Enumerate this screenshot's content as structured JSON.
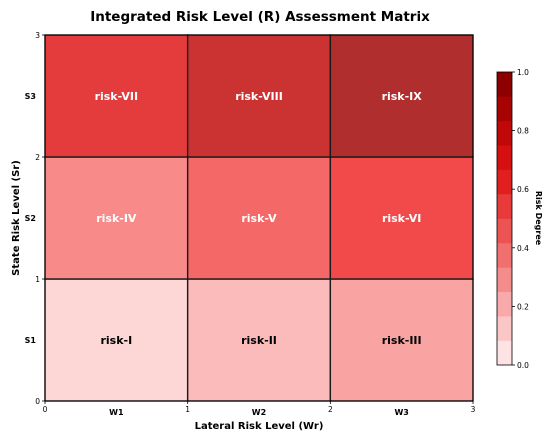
{
  "chart_data": {
    "type": "heatmap",
    "title": "Integrated Risk Level (R) Assessment Matrix",
    "xlabel": "Lateral Risk Level (Wr)",
    "ylabel": "State Risk Level (Sr)",
    "x_categories": [
      "W1",
      "W2",
      "W3"
    ],
    "y_categories": [
      "S1",
      "S2",
      "S3"
    ],
    "x_ticks": [
      "0",
      "1",
      "2",
      "3"
    ],
    "y_ticks": [
      "0",
      "1",
      "2",
      "3"
    ],
    "xlim": [
      0,
      3
    ],
    "ylim": [
      0,
      3
    ],
    "cells": [
      {
        "x": 0,
        "y": 0,
        "label": "risk-I",
        "value": 0.1,
        "color": "#fdd6d6",
        "text_color": "#000000"
      },
      {
        "x": 1,
        "y": 0,
        "label": "risk-II",
        "value": 0.2,
        "color": "#fbbbbb",
        "text_color": "#000000"
      },
      {
        "x": 2,
        "y": 0,
        "label": "risk-III",
        "value": 0.25,
        "color": "#f9a3a3",
        "text_color": "#000000"
      },
      {
        "x": 0,
        "y": 1,
        "label": "risk-IV",
        "value": 0.35,
        "color": "#f88a8a",
        "text_color": "#ffffff"
      },
      {
        "x": 1,
        "y": 1,
        "label": "risk-V",
        "value": 0.45,
        "color": "#f46868",
        "text_color": "#ffffff"
      },
      {
        "x": 2,
        "y": 1,
        "label": "risk-VI",
        "value": 0.55,
        "color": "#f24a4a",
        "text_color": "#ffffff"
      },
      {
        "x": 0,
        "y": 2,
        "label": "risk-VII",
        "value": 0.65,
        "color": "#e43c3c",
        "text_color": "#ffffff"
      },
      {
        "x": 1,
        "y": 2,
        "label": "risk-VIII",
        "value": 0.75,
        "color": "#cb3333",
        "text_color": "#ffffff"
      },
      {
        "x": 2,
        "y": 2,
        "label": "risk-IX",
        "value": 0.85,
        "color": "#b12e2e",
        "text_color": "#ffffff"
      }
    ],
    "colorbar": {
      "label": "Risk Degree",
      "range": [
        0,
        1
      ],
      "ticks": [
        "0.0",
        "0.2",
        "0.4",
        "0.6",
        "0.8",
        "1.0"
      ],
      "colors": [
        "#fde3e3",
        "#fbc6c6",
        "#f8a9a9",
        "#f48c8c",
        "#f06f6f",
        "#ec5454",
        "#e83a3a",
        "#e21f1f",
        "#d61010",
        "#c00808",
        "#a80303",
        "#8e0000"
      ]
    }
  }
}
